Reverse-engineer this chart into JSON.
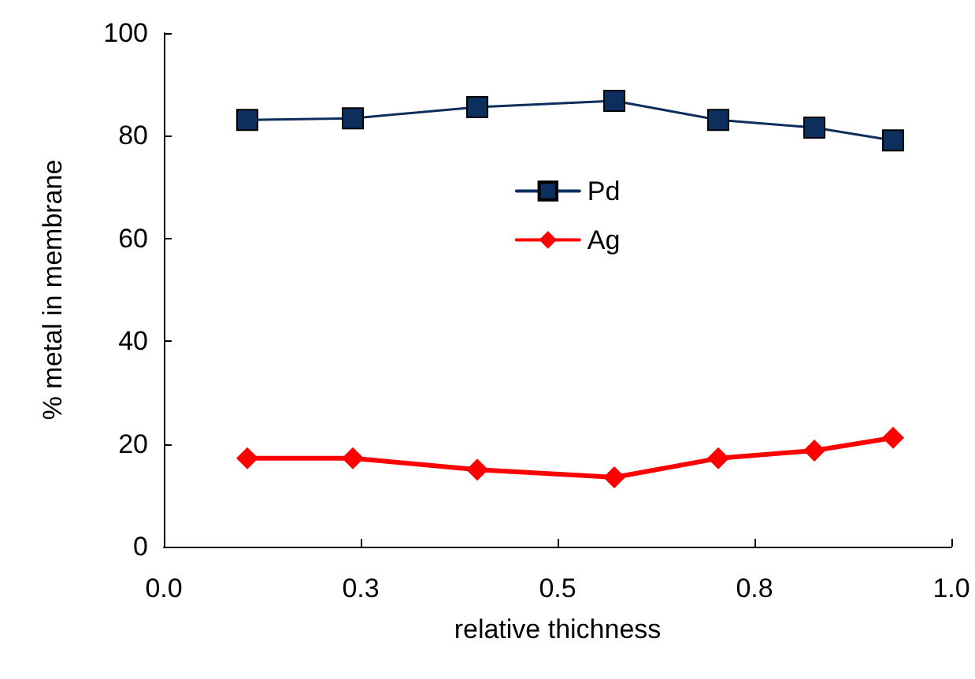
{
  "chart_data": {
    "type": "line",
    "xlabel": "relative thichness",
    "ylabel": "% metal in membrane",
    "xlim": [
      0,
      1
    ],
    "xticks": [
      {
        "value": 0,
        "label": "0.0"
      },
      {
        "value": 0.25,
        "label": "0.3"
      },
      {
        "value": 0.5,
        "label": "0.5"
      },
      {
        "value": 0.75,
        "label": "0.8"
      },
      {
        "value": 1,
        "label": "1.0"
      }
    ],
    "ylim": [
      0,
      100
    ],
    "yticks": [
      0,
      20,
      40,
      60,
      80,
      100
    ],
    "grid": false,
    "legend": "center",
    "line_style": "solid",
    "series": [
      {
        "name": "Pd",
        "color": "#0d2f5e",
        "marker": "square",
        "x": [
          0.106,
          0.24,
          0.398,
          0.572,
          0.704,
          0.826,
          0.926
        ],
        "values": [
          83.1,
          83.4,
          85.6,
          86.8,
          83.1,
          81.6,
          79.1
        ]
      },
      {
        "name": "Ag",
        "color": "#ff0000",
        "marker": "diamond",
        "x": [
          0.106,
          0.24,
          0.398,
          0.572,
          0.704,
          0.826,
          0.926
        ],
        "values": [
          17.2,
          17.2,
          15.0,
          13.5,
          17.2,
          18.7,
          21.2
        ]
      }
    ]
  }
}
